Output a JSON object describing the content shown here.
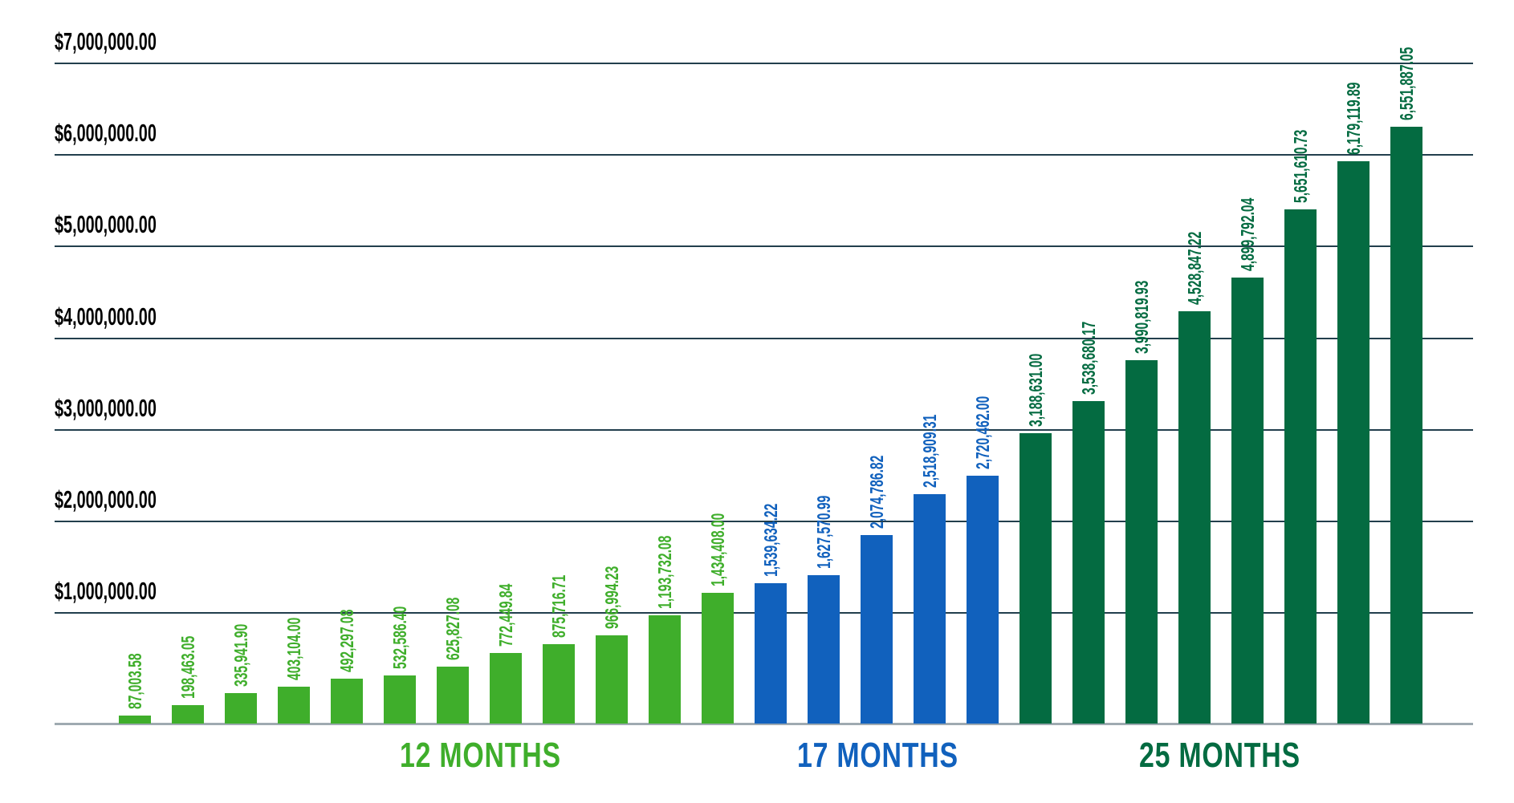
{
  "chart_data": {
    "type": "bar",
    "title": "",
    "xlabel": "",
    "ylabel": "",
    "ylim": [
      0,
      7000000
    ],
    "grid": "horizontal",
    "legend_position": "none",
    "y_axis": {
      "ticks": [
        {
          "label": "$7,000,000.00",
          "value": 7000000
        },
        {
          "label": "$6,000,000.00",
          "value": 6000000
        },
        {
          "label": "$5,000,000.00",
          "value": 5000000
        },
        {
          "label": "$4,000,000.00",
          "value": 4000000
        },
        {
          "label": "$3,000,000.00",
          "value": 3000000
        },
        {
          "label": "$2,000,000.00",
          "value": 2000000
        },
        {
          "label": "$1,000,000.00",
          "value": 1000000
        }
      ]
    },
    "axis_colors": {
      "gridline_color": "#223f4d",
      "baseline_color": "#9faab1",
      "tick_label_color": "#000000"
    },
    "groups": [
      {
        "label": "12 MONTHS",
        "color": "#3fae2b",
        "bars": [
          {
            "label": "87,003.58",
            "value": 87003.58
          },
          {
            "label": "198,463.05",
            "value": 198463.05
          },
          {
            "label": "335,941.90",
            "value": 335941.9
          },
          {
            "label": "403,104.00",
            "value": 403104.0
          },
          {
            "label": "492,297.08",
            "value": 492297.08
          },
          {
            "label": "532,586.40",
            "value": 532586.4
          },
          {
            "label": "625,827.08",
            "value": 625827.08
          },
          {
            "label": "772,449.84",
            "value": 772449.84
          },
          {
            "label": "875,716.71",
            "value": 875716.71
          },
          {
            "label": "966,994.23",
            "value": 966994.23
          },
          {
            "label": "1,193,732.08",
            "value": 1193732.08
          },
          {
            "label": "1,434,408.00",
            "value": 1434408.0
          }
        ]
      },
      {
        "label": "17 MONTHS",
        "color": "#1161bd",
        "bars": [
          {
            "label": "1,539,634.22",
            "value": 1539634.22
          },
          {
            "label": "1,627,570.99",
            "value": 1627570.99
          },
          {
            "label": "2,074,786.82",
            "value": 2074786.82
          },
          {
            "label": "2,518,909.31",
            "value": 2518909.31
          },
          {
            "label": "2,720,462.00",
            "value": 2720462.0
          }
        ]
      },
      {
        "label": "25 MONTHS",
        "color": "#046b41",
        "bars": [
          {
            "label": "3,188,631.00",
            "value": 3188631.0
          },
          {
            "label": "3,538,680.17",
            "value": 3538680.17
          },
          {
            "label": "3,990,819.93",
            "value": 3990819.93
          },
          {
            "label": "4,528,847.22",
            "value": 4528847.22
          },
          {
            "label": "4,899,792.04",
            "value": 4899792.04
          },
          {
            "label": "5,651,610.73",
            "value": 5651610.73
          },
          {
            "label": "6,179,119.89",
            "value": 6179119.89
          },
          {
            "label": "6,551,887.05",
            "value": 6551887.05
          }
        ]
      }
    ]
  }
}
